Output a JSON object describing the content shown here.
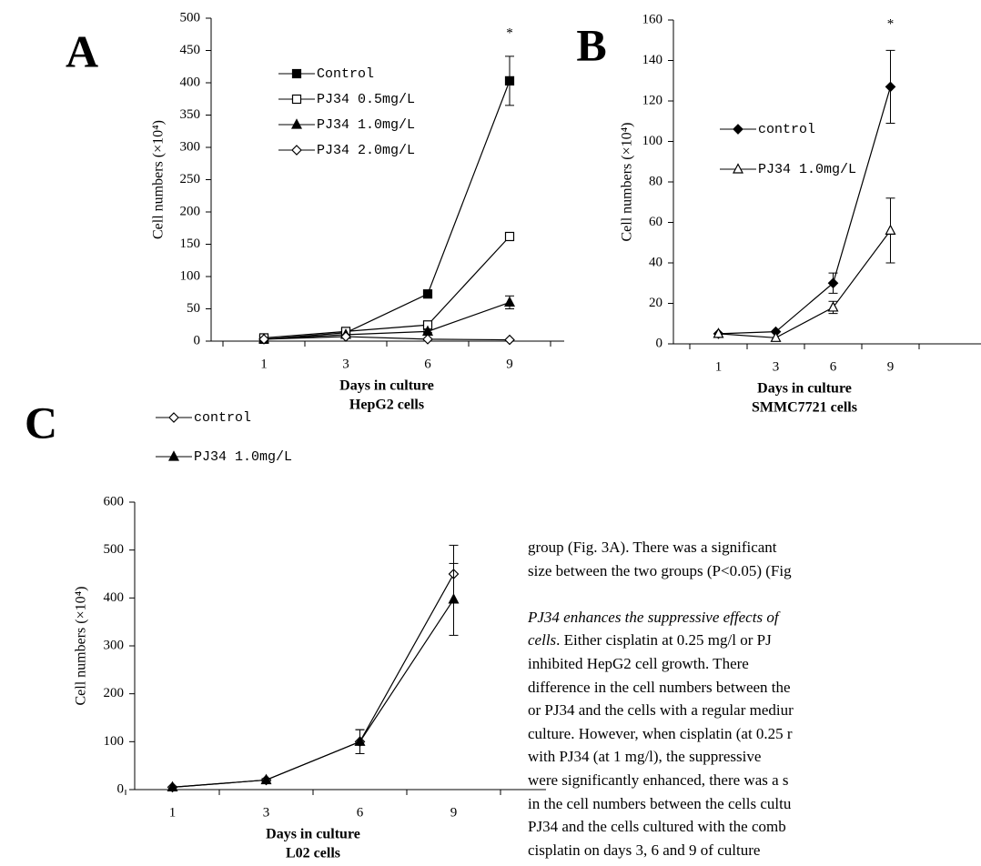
{
  "chart_data": [
    {
      "type": "line",
      "panel": "A",
      "ylabel": "Cell numbers (×10⁴)",
      "xlabel": "Days in culture",
      "subtitle": "HepG2 cells",
      "categories": [
        "1",
        "3",
        "6",
        "9"
      ],
      "ylim": [
        0,
        500
      ],
      "yticks": [
        0,
        50,
        100,
        150,
        200,
        250,
        300,
        350,
        400,
        450,
        500
      ],
      "annotation": "*",
      "legend": "upper left",
      "series": [
        {
          "name": "Control",
          "color": "#000000",
          "marker": "square",
          "filled": true,
          "values": [
            3,
            13,
            73,
            403
          ],
          "errors": [
            0,
            0,
            3,
            38
          ]
        },
        {
          "name": "PJ34 0.5mg/L",
          "color": "#000000",
          "marker": "square",
          "filled": false,
          "values": [
            5,
            15,
            25,
            162
          ],
          "errors": [
            0,
            0,
            2,
            3
          ]
        },
        {
          "name": "PJ34 1.0mg/L",
          "color": "#000000",
          "marker": "triangle",
          "filled": true,
          "values": [
            3,
            10,
            15,
            60
          ],
          "errors": [
            0,
            0,
            2,
            10
          ]
        },
        {
          "name": "PJ34 2.0mg/L",
          "color": "#000000",
          "marker": "diamond",
          "filled": false,
          "values": [
            3,
            7,
            3,
            2
          ],
          "errors": [
            0,
            0,
            0,
            0
          ]
        }
      ]
    },
    {
      "type": "line",
      "panel": "B",
      "ylabel": "Cell numbers (×10⁴)",
      "xlabel": "Days in culture",
      "subtitle": "SMMC7721 cells",
      "categories": [
        "1",
        "3",
        "6",
        "9"
      ],
      "ylim": [
        0,
        160
      ],
      "yticks": [
        0,
        20,
        40,
        60,
        80,
        100,
        120,
        140,
        160
      ],
      "annotation": "*",
      "legend": "upper left",
      "series": [
        {
          "name": "control",
          "color": "#000000",
          "marker": "diamond",
          "filled": true,
          "values": [
            5,
            6,
            30,
            127
          ],
          "errors": [
            0,
            0,
            5,
            18
          ]
        },
        {
          "name": "PJ34 1.0mg/L",
          "color": "#000000",
          "marker": "triangle",
          "filled": false,
          "values": [
            5,
            3,
            18,
            56
          ],
          "errors": [
            0,
            0,
            3,
            16
          ]
        }
      ]
    },
    {
      "type": "line",
      "panel": "C",
      "ylabel": "Cell numbers (×10⁴)",
      "xlabel": "Days in culture",
      "subtitle": "L02 cells",
      "categories": [
        "1",
        "3",
        "6",
        "9"
      ],
      "ylim": [
        0,
        600
      ],
      "yticks": [
        0,
        100,
        200,
        300,
        400,
        500,
        600
      ],
      "legend": "upper left",
      "series": [
        {
          "name": "control",
          "color": "#000000",
          "marker": "diamond",
          "filled": false,
          "values": [
            5,
            20,
            100,
            450
          ],
          "errors": [
            0,
            0,
            25,
            60
          ]
        },
        {
          "name": "PJ34 1.0mg/L",
          "color": "#000000",
          "marker": "triangle",
          "filled": true,
          "values": [
            5,
            20,
            100,
            397
          ],
          "errors": [
            0,
            3,
            25,
            75
          ]
        }
      ]
    }
  ],
  "text": {
    "lines": [
      [
        {
          "text": "group (Fig. 3A). There was a significant",
          "italic": false
        }
      ],
      [
        {
          "text": "size between the two groups (P<0.05) (Fig",
          "italic": false
        }
      ],
      [
        {
          "text": "PJ34 enhances the suppressive effects of",
          "italic": true
        }
      ],
      [
        {
          "text": "cells",
          "italic": true
        },
        {
          "text": ". Either cisplatin at 0.25 mg/l or PJ",
          "italic": false
        }
      ],
      [
        {
          "text": "inhibited HepG2 cell growth. There",
          "italic": false
        }
      ],
      [
        {
          "text": "difference in the cell numbers between the",
          "italic": false
        }
      ],
      [
        {
          "text": "or PJ34 and the cells with a regular mediur",
          "italic": false
        }
      ],
      [
        {
          "text": "culture. However, when cisplatin (at 0.25 r",
          "italic": false
        }
      ],
      [
        {
          "text": "with PJ34 (at 1 mg/l), the suppressive",
          "italic": false
        }
      ],
      [
        {
          "text": "were significantly enhanced, there was a s",
          "italic": false
        }
      ],
      [
        {
          "text": "in the cell numbers between the cells cultu",
          "italic": false
        }
      ],
      [
        {
          "text": "PJ34 and the cells cultured with the comb",
          "italic": false
        }
      ],
      [
        {
          "text": "cisplatin on days 3, 6 and 9 of culture",
          "italic": false
        }
      ]
    ]
  }
}
